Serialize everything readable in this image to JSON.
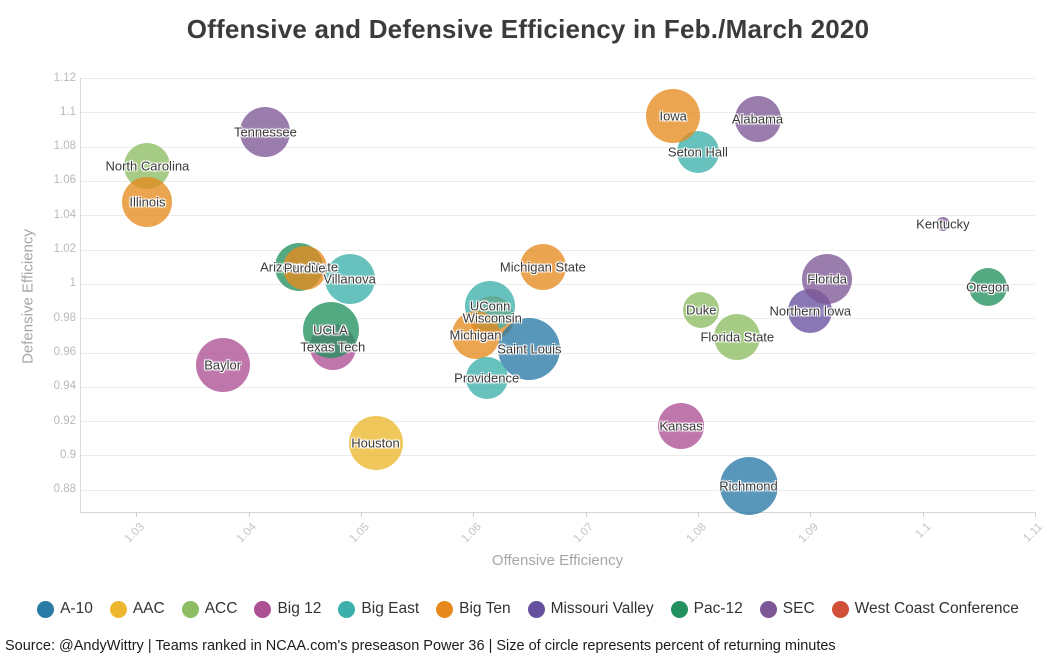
{
  "title": "Offensive and Defensive Efficiency in Feb./March 2020",
  "source": "Source: @AndyWittry | Teams ranked in NCAA.com's preseason Power 36 | Size of circle represents percent of returning minutes",
  "chart_data": {
    "type": "scatter",
    "subtype": "bubble",
    "title": "Offensive and Defensive Efficiency in Feb./March 2020",
    "xlabel": "Offensive Efficiency",
    "ylabel": "Defensive Efficiency",
    "xlim": [
      1.025,
      1.11
    ],
    "ylim": [
      0.867,
      1.12
    ],
    "grid": "horizontal",
    "legend_position": "bottom",
    "size_encoding": "percent of returning minutes",
    "x_ticks": [
      {
        "v": 1.03,
        "label": "1.03"
      },
      {
        "v": 1.04,
        "label": "1.04"
      },
      {
        "v": 1.05,
        "label": "1.05"
      },
      {
        "v": 1.06,
        "label": "1.06"
      },
      {
        "v": 1.07,
        "label": "1.07"
      },
      {
        "v": 1.08,
        "label": "1.08"
      },
      {
        "v": 1.09,
        "label": "1.09"
      },
      {
        "v": 1.1,
        "label": "1.1"
      },
      {
        "v": 1.11,
        "label": "1.11"
      }
    ],
    "y_ticks": [
      {
        "v": 1.12,
        "label": "1.12"
      },
      {
        "v": 1.1,
        "label": "1.1"
      },
      {
        "v": 1.08,
        "label": "1.08"
      },
      {
        "v": 1.06,
        "label": "1.06"
      },
      {
        "v": 1.04,
        "label": "1.04"
      },
      {
        "v": 1.02,
        "label": "1.02"
      },
      {
        "v": 1.0,
        "label": "1"
      },
      {
        "v": 0.98,
        "label": "0.98"
      },
      {
        "v": 0.96,
        "label": "0.96"
      },
      {
        "v": 0.94,
        "label": "0.94"
      },
      {
        "v": 0.92,
        "label": "0.92"
      },
      {
        "v": 0.9,
        "label": "0.9"
      },
      {
        "v": 0.88,
        "label": "0.88"
      }
    ],
    "conferences": [
      {
        "name": "A-10",
        "color": "#2a7aa6"
      },
      {
        "name": "AAC",
        "color": "#ecb72c"
      },
      {
        "name": "ACC",
        "color": "#8cbd62"
      },
      {
        "name": "Big 12",
        "color": "#ad4f93"
      },
      {
        "name": "Big East",
        "color": "#3cafab"
      },
      {
        "name": "Big Ten",
        "color": "#e68a1e"
      },
      {
        "name": "Missouri Valley",
        "color": "#66519f"
      },
      {
        "name": "Pac-12",
        "color": "#23915f"
      },
      {
        "name": "SEC",
        "color": "#7e5796"
      },
      {
        "name": "West Coast Conference",
        "color": "#d24f38"
      }
    ],
    "teams": [
      {
        "name": "North Carolina",
        "conference": "ACC",
        "x": 1.031,
        "y": 1.069,
        "r": 23
      },
      {
        "name": "Illinois",
        "conference": "Big Ten",
        "x": 1.031,
        "y": 1.048,
        "r": 25
      },
      {
        "name": "Tennessee",
        "conference": "SEC",
        "x": 1.0415,
        "y": 1.0885,
        "r": 25
      },
      {
        "name": "Arizona State",
        "conference": "Pac-12",
        "x": 1.0445,
        "y": 1.01,
        "r": 24
      },
      {
        "name": "Villanova",
        "conference": "Big East",
        "x": 1.049,
        "y": 1.003,
        "r": 25
      },
      {
        "name": "Purdue",
        "conference": "Big Ten",
        "x": 1.045,
        "y": 1.009,
        "r": 22
      },
      {
        "name": "Texas Tech",
        "conference": "Big 12",
        "x": 1.0475,
        "y": 0.963,
        "r": 23
      },
      {
        "name": "UCLA",
        "conference": "Pac-12",
        "x": 1.0473,
        "y": 0.973,
        "r": 28
      },
      {
        "name": "Baylor",
        "conference": "Big 12",
        "x": 1.0377,
        "y": 0.9525,
        "r": 27
      },
      {
        "name": "Houston",
        "conference": "AAC",
        "x": 1.0513,
        "y": 0.9075,
        "r": 27
      },
      {
        "name": "Michigan State",
        "conference": "Big Ten",
        "x": 1.0662,
        "y": 1.01,
        "r": 23
      },
      {
        "name": "Wisconsin",
        "conference": "Big Ten",
        "x": 1.0617,
        "y": 0.98,
        "r": 22
      },
      {
        "name": "UConn",
        "conference": "Big East",
        "x": 1.0615,
        "y": 0.987,
        "r": 25
      },
      {
        "name": "Michigan",
        "conference": "Big Ten",
        "x": 1.0602,
        "y": 0.97,
        "r": 24
      },
      {
        "name": "Saint Louis",
        "conference": "A-10",
        "x": 1.065,
        "y": 0.962,
        "r": 31
      },
      {
        "name": "Providence",
        "conference": "Big East",
        "x": 1.0612,
        "y": 0.945,
        "r": 21
      },
      {
        "name": "Seton Hall",
        "conference": "Big East",
        "x": 1.08,
        "y": 1.077,
        "r": 21
      },
      {
        "name": "Iowa",
        "conference": "Big Ten",
        "x": 1.0778,
        "y": 1.098,
        "r": 27
      },
      {
        "name": "Alabama",
        "conference": "SEC",
        "x": 1.0853,
        "y": 1.096,
        "r": 23
      },
      {
        "name": "Kentucky",
        "conference": "SEC",
        "x": 1.1018,
        "y": 1.035,
        "r": 7
      },
      {
        "name": "Duke",
        "conference": "ACC",
        "x": 1.0803,
        "y": 0.985,
        "r": 18
      },
      {
        "name": "Florida State",
        "conference": "ACC",
        "x": 1.0835,
        "y": 0.969,
        "r": 23
      },
      {
        "name": "Northern Iowa",
        "conference": "Missouri Valley",
        "x": 1.09,
        "y": 0.984,
        "r": 22
      },
      {
        "name": "Florida",
        "conference": "SEC",
        "x": 1.0915,
        "y": 1.003,
        "r": 25
      },
      {
        "name": "Oregon",
        "conference": "Pac-12",
        "x": 1.1058,
        "y": 0.998,
        "r": 19
      },
      {
        "name": "Kansas",
        "conference": "Big 12",
        "x": 1.0785,
        "y": 0.917,
        "r": 23
      },
      {
        "name": "Richmond",
        "conference": "A-10",
        "x": 1.0845,
        "y": 0.882,
        "r": 29
      }
    ]
  }
}
